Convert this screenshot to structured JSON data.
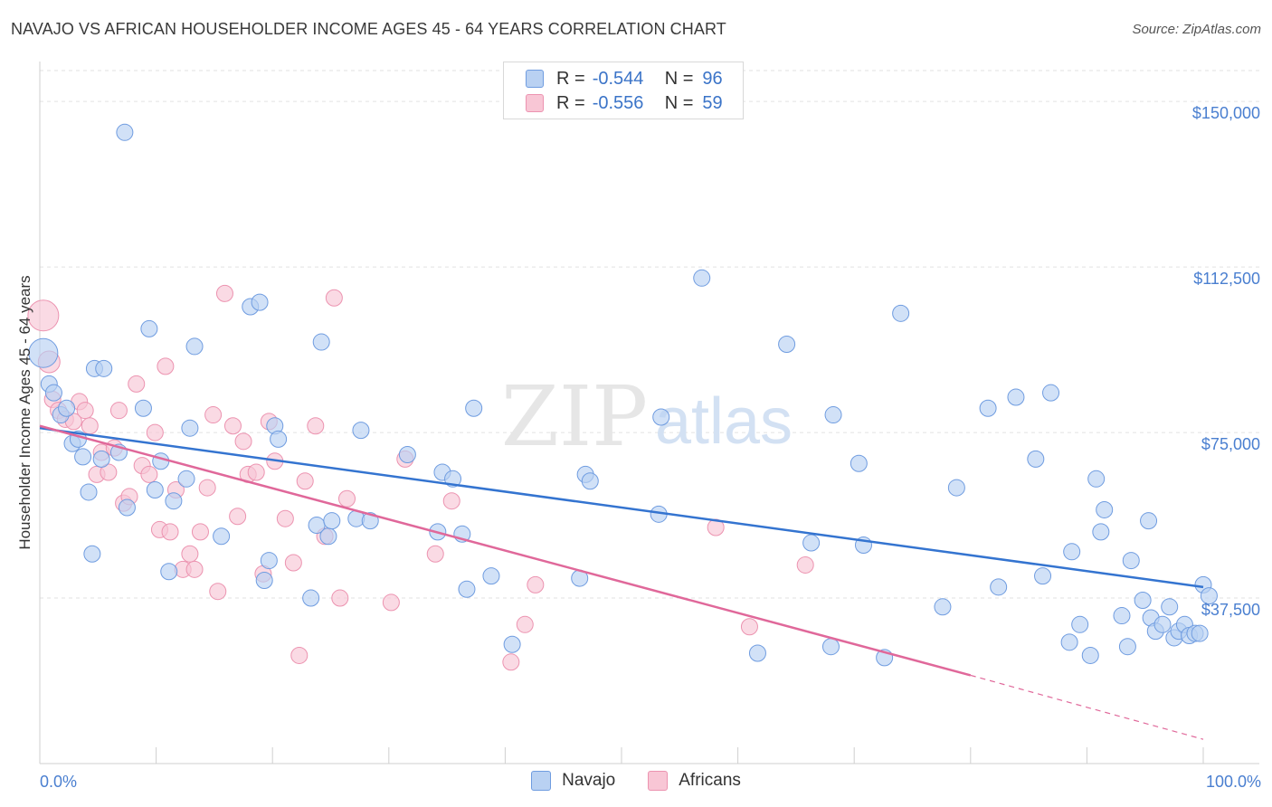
{
  "header": {
    "title": "NAVAJO VS AFRICAN HOUSEHOLDER INCOME AGES 45 - 64 YEARS CORRELATION CHART",
    "source": "Source: ZipAtlas.com"
  },
  "watermark": {
    "zip": "ZIP",
    "atlas": "atlas"
  },
  "legend": {
    "rows": [
      {
        "r_label": "R =",
        "r_value": "-0.544",
        "n_label": "N =",
        "n_value": "96"
      },
      {
        "r_label": "R =",
        "r_value": "-0.556",
        "n_label": "N =",
        "n_value": "59"
      }
    ]
  },
  "bottom_legend": {
    "navajo": "Navajo",
    "africans": "Africans"
  },
  "colors": {
    "navajo_fill": "#b9d1f2",
    "navajo_stroke": "#6f9ce0",
    "navajo_line": "#3474d0",
    "africans_fill": "#f8c6d5",
    "africans_stroke": "#ec93b0",
    "africans_line": "#e0689a",
    "tick_text": "#4a7fd0"
  },
  "chart_data": {
    "type": "scatter",
    "title": "NAVAJO VS AFRICAN HOUSEHOLDER INCOME AGES 45 - 64 YEARS CORRELATION CHART",
    "xlabel": "",
    "ylabel": "Householder Income Ages 45 - 64 years",
    "xlim": [
      0,
      100
    ],
    "ylim": [
      0,
      157000
    ],
    "x_tick_labels": [
      "0.0%",
      "100.0%"
    ],
    "y_ticks": [
      37500,
      75000,
      112500,
      150000
    ],
    "y_tick_labels": [
      "$37,500",
      "$75,000",
      "$112,500",
      "$150,000"
    ],
    "grid": true,
    "series": [
      {
        "name": "Navajo",
        "r": -0.544,
        "n": 96,
        "trend": {
          "x": [
            0,
            100
          ],
          "y": [
            76000,
            40000
          ]
        },
        "points": [
          [
            0.3,
            93000,
            16
          ],
          [
            0.8,
            86000,
            9
          ],
          [
            1.2,
            84000,
            9
          ],
          [
            1.8,
            79000,
            9
          ],
          [
            2.3,
            80500,
            9
          ],
          [
            2.8,
            72500,
            9
          ],
          [
            3.3,
            73500,
            9
          ],
          [
            3.7,
            69500,
            9
          ],
          [
            4.2,
            61500,
            9
          ],
          [
            4.5,
            47500,
            9
          ],
          [
            4.7,
            89500,
            9
          ],
          [
            5.5,
            89500,
            9
          ],
          [
            5.3,
            69000,
            9
          ],
          [
            6.8,
            70500,
            9
          ],
          [
            7.5,
            58000,
            9
          ],
          [
            7.3,
            143000,
            9
          ],
          [
            8.9,
            80500,
            9
          ],
          [
            9.4,
            98500,
            9
          ],
          [
            9.9,
            62000,
            9
          ],
          [
            10.4,
            68500,
            9
          ],
          [
            11.1,
            43500,
            9
          ],
          [
            11.5,
            59500,
            9
          ],
          [
            12.6,
            64500,
            9
          ],
          [
            12.9,
            76000,
            9
          ],
          [
            13.3,
            94500,
            9
          ],
          [
            15.6,
            51500,
            9
          ],
          [
            18.1,
            103500,
            9
          ],
          [
            18.9,
            104500,
            9
          ],
          [
            19.3,
            41500,
            9
          ],
          [
            19.7,
            46000,
            9
          ],
          [
            20.2,
            76500,
            9
          ],
          [
            20.5,
            73500,
            9
          ],
          [
            23.3,
            37500,
            9
          ],
          [
            23.8,
            54000,
            9
          ],
          [
            24.2,
            95500,
            9
          ],
          [
            24.8,
            51500,
            9
          ],
          [
            25.1,
            55000,
            9
          ],
          [
            27.2,
            55500,
            9
          ],
          [
            27.6,
            75500,
            9
          ],
          [
            28.4,
            55000,
            9
          ],
          [
            31.6,
            70000,
            9
          ],
          [
            34.2,
            52500,
            9
          ],
          [
            34.6,
            66000,
            9
          ],
          [
            35.5,
            64500,
            9
          ],
          [
            36.3,
            52000,
            9
          ],
          [
            36.7,
            39500,
            9
          ],
          [
            37.3,
            80500,
            9
          ],
          [
            38.8,
            42500,
            9
          ],
          [
            40.6,
            27000,
            9
          ],
          [
            46.4,
            42000,
            9
          ],
          [
            46.9,
            65500,
            9
          ],
          [
            47.3,
            64000,
            9
          ],
          [
            53.2,
            56500,
            9
          ],
          [
            53.4,
            78500,
            9
          ],
          [
            56.9,
            110000,
            9
          ],
          [
            61.7,
            25000,
            9
          ],
          [
            64.2,
            95000,
            9
          ],
          [
            66.3,
            50000,
            9
          ],
          [
            68.0,
            26500,
            9
          ],
          [
            68.2,
            79000,
            9
          ],
          [
            70.4,
            68000,
            9
          ],
          [
            70.8,
            49500,
            9
          ],
          [
            72.6,
            24000,
            9
          ],
          [
            74.0,
            102000,
            9
          ],
          [
            77.6,
            35500,
            9
          ],
          [
            78.8,
            62500,
            9
          ],
          [
            81.5,
            80500,
            9
          ],
          [
            82.4,
            40000,
            9
          ],
          [
            83.9,
            83000,
            9
          ],
          [
            85.6,
            69000,
            9
          ],
          [
            86.2,
            42500,
            9
          ],
          [
            86.9,
            84000,
            9
          ],
          [
            88.5,
            27500,
            9
          ],
          [
            88.7,
            48000,
            9
          ],
          [
            89.4,
            31500,
            9
          ],
          [
            90.3,
            24500,
            9
          ],
          [
            90.8,
            64500,
            9
          ],
          [
            91.2,
            52500,
            9
          ],
          [
            91.5,
            57500,
            9
          ],
          [
            93.0,
            33500,
            9
          ],
          [
            93.5,
            26500,
            9
          ],
          [
            93.8,
            46000,
            9
          ],
          [
            94.8,
            37000,
            9
          ],
          [
            95.3,
            55000,
            9
          ],
          [
            95.5,
            33000,
            9
          ],
          [
            95.9,
            30000,
            9
          ],
          [
            96.5,
            31500,
            9
          ],
          [
            97.1,
            35500,
            9
          ],
          [
            97.5,
            28500,
            9
          ],
          [
            97.9,
            30000,
            9
          ],
          [
            98.4,
            31500,
            9
          ],
          [
            98.8,
            29000,
            9
          ],
          [
            99.3,
            29500,
            9
          ],
          [
            99.7,
            29500,
            9
          ],
          [
            100.0,
            40500,
            9
          ],
          [
            100.5,
            38000,
            9
          ]
        ]
      },
      {
        "name": "Africans",
        "r": -0.556,
        "n": 59,
        "trend": {
          "x": [
            0,
            80
          ],
          "y": [
            76500,
            20000
          ]
        },
        "trend_extension": {
          "x": [
            80,
            100
          ],
          "y": [
            20000,
            5500
          ]
        },
        "points": [
          [
            0.3,
            101500,
            17
          ],
          [
            0.8,
            91000,
            12
          ],
          [
            1.1,
            82500,
            9
          ],
          [
            1.6,
            80000,
            9
          ],
          [
            2.2,
            78000,
            9
          ],
          [
            2.9,
            77500,
            9
          ],
          [
            3.4,
            82000,
            9
          ],
          [
            3.9,
            80000,
            9
          ],
          [
            4.3,
            76500,
            9
          ],
          [
            4.9,
            65500,
            9
          ],
          [
            5.3,
            70500,
            9
          ],
          [
            5.9,
            66000,
            9
          ],
          [
            6.4,
            71500,
            9
          ],
          [
            6.8,
            80000,
            9
          ],
          [
            7.2,
            59000,
            9
          ],
          [
            7.7,
            60500,
            9
          ],
          [
            8.3,
            86000,
            9
          ],
          [
            8.8,
            67500,
            9
          ],
          [
            9.4,
            65500,
            9
          ],
          [
            9.9,
            75000,
            9
          ],
          [
            10.3,
            53000,
            9
          ],
          [
            10.8,
            90000,
            9
          ],
          [
            11.2,
            52500,
            9
          ],
          [
            11.7,
            62000,
            9
          ],
          [
            12.3,
            44000,
            9
          ],
          [
            12.9,
            47500,
            9
          ],
          [
            13.3,
            44000,
            9
          ],
          [
            13.8,
            52500,
            9
          ],
          [
            14.4,
            62500,
            9
          ],
          [
            14.9,
            79000,
            9
          ],
          [
            15.3,
            39000,
            9
          ],
          [
            15.9,
            106500,
            9
          ],
          [
            16.6,
            76500,
            9
          ],
          [
            17.0,
            56000,
            9
          ],
          [
            17.5,
            73000,
            9
          ],
          [
            17.9,
            65500,
            9
          ],
          [
            18.6,
            66000,
            9
          ],
          [
            19.2,
            43000,
            9
          ],
          [
            19.7,
            77500,
            9
          ],
          [
            20.2,
            68500,
            9
          ],
          [
            21.1,
            55500,
            9
          ],
          [
            21.8,
            45500,
            9
          ],
          [
            22.3,
            24500,
            9
          ],
          [
            22.8,
            64000,
            9
          ],
          [
            23.7,
            76500,
            9
          ],
          [
            24.5,
            51500,
            9
          ],
          [
            25.3,
            105500,
            9
          ],
          [
            25.8,
            37500,
            9
          ],
          [
            26.4,
            60000,
            9
          ],
          [
            30.2,
            36500,
            9
          ],
          [
            31.4,
            69000,
            9
          ],
          [
            34.0,
            47500,
            9
          ],
          [
            35.4,
            59500,
            9
          ],
          [
            40.5,
            23000,
            9
          ],
          [
            41.7,
            31500,
            9
          ],
          [
            42.6,
            40500,
            9
          ],
          [
            58.1,
            53500,
            9
          ],
          [
            61.0,
            31000,
            9
          ],
          [
            65.8,
            45000,
            9
          ]
        ]
      }
    ]
  }
}
